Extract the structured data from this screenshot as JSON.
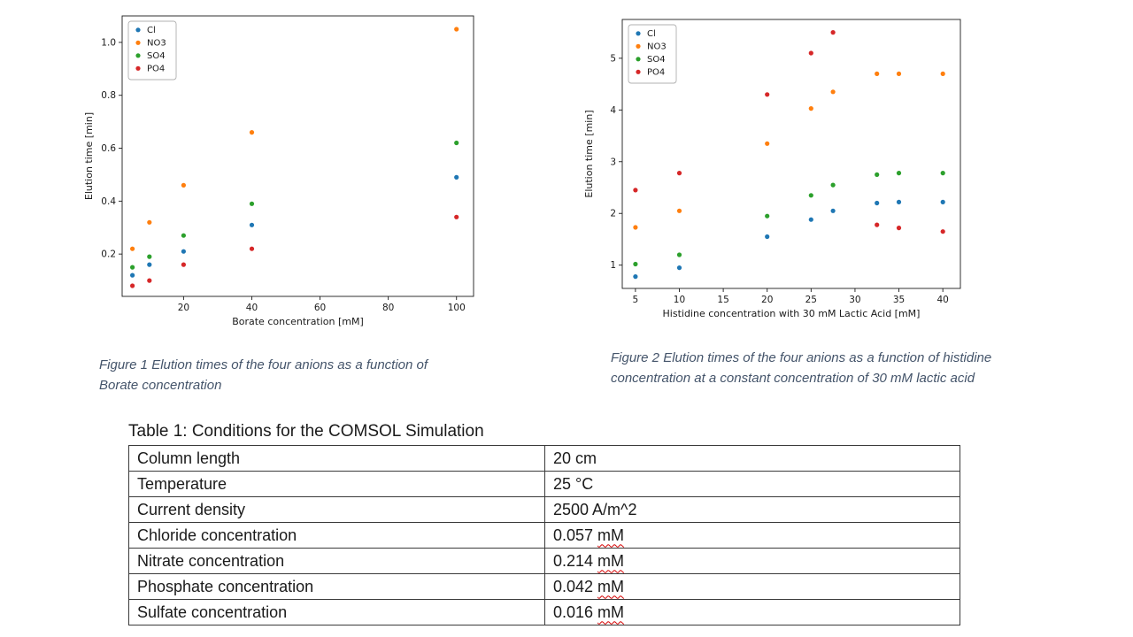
{
  "figures": {
    "fig1_caption": "Figure 1 Elution times of the four anions as a function of Borate concentration",
    "fig2_caption": "Figure 2 Elution times of the four anions as a function of histidine concentration at a constant concentration of 30 mM lactic acid"
  },
  "chart_data": [
    {
      "type": "scatter",
      "title": "",
      "xlabel": "Borate concentration [mM]",
      "ylabel": "Elution time [min]",
      "xlim": [
        2,
        105
      ],
      "ylim": [
        0.04,
        1.1
      ],
      "xticks": [
        20,
        40,
        60,
        80,
        100
      ],
      "xtick_labels": [
        "20",
        "40",
        "60",
        "80",
        "100"
      ],
      "yticks": [
        0.2,
        0.4,
        0.6,
        0.8,
        1.0
      ],
      "ytick_labels": [
        "0.2",
        "0.4",
        "0.6",
        "0.8",
        "1.0"
      ],
      "grid": false,
      "legend_position": "upper left",
      "series": [
        {
          "name": "Cl",
          "color": "#1f77b4",
          "points": [
            [
              5,
              0.12
            ],
            [
              10,
              0.16
            ],
            [
              20,
              0.21
            ],
            [
              40,
              0.31
            ],
            [
              100,
              0.49
            ]
          ]
        },
        {
          "name": "NO3",
          "color": "#ff7f0e",
          "points": [
            [
              5,
              0.22
            ],
            [
              10,
              0.32
            ],
            [
              20,
              0.46
            ],
            [
              40,
              0.66
            ],
            [
              100,
              1.05
            ]
          ]
        },
        {
          "name": "SO4",
          "color": "#2ca02c",
          "points": [
            [
              5,
              0.15
            ],
            [
              10,
              0.19
            ],
            [
              20,
              0.27
            ],
            [
              40,
              0.39
            ],
            [
              100,
              0.62
            ]
          ]
        },
        {
          "name": "PO4",
          "color": "#d62728",
          "points": [
            [
              5,
              0.08
            ],
            [
              10,
              0.1
            ],
            [
              20,
              0.16
            ],
            [
              40,
              0.22
            ],
            [
              100,
              0.34
            ]
          ]
        }
      ]
    },
    {
      "type": "scatter",
      "title": "",
      "xlabel": "Histidine concentration with 30 mM Lactic Acid [mM]",
      "ylabel": "Elution time [min]",
      "xlim": [
        3.5,
        42
      ],
      "ylim": [
        0.55,
        5.75
      ],
      "xticks": [
        5,
        10,
        15,
        20,
        25,
        30,
        35,
        40
      ],
      "xtick_labels": [
        "5",
        "10",
        "15",
        "20",
        "25",
        "30",
        "35",
        "40"
      ],
      "yticks": [
        1,
        2,
        3,
        4,
        5
      ],
      "ytick_labels": [
        "1",
        "2",
        "3",
        "4",
        "5"
      ],
      "grid": false,
      "legend_position": "upper left",
      "series": [
        {
          "name": "Cl",
          "color": "#1f77b4",
          "points": [
            [
              5,
              0.78
            ],
            [
              10,
              0.95
            ],
            [
              20,
              1.55
            ],
            [
              25,
              1.88
            ],
            [
              27.5,
              2.05
            ],
            [
              32.5,
              2.2
            ],
            [
              35,
              2.22
            ],
            [
              40,
              2.22
            ]
          ]
        },
        {
          "name": "NO3",
          "color": "#ff7f0e",
          "points": [
            [
              5,
              1.73
            ],
            [
              10,
              2.05
            ],
            [
              20,
              3.35
            ],
            [
              25,
              4.03
            ],
            [
              27.5,
              4.35
            ],
            [
              32.5,
              4.7
            ],
            [
              35,
              4.7
            ],
            [
              40,
              4.7
            ]
          ]
        },
        {
          "name": "SO4",
          "color": "#2ca02c",
          "points": [
            [
              5,
              1.02
            ],
            [
              10,
              1.2
            ],
            [
              20,
              1.95
            ],
            [
              25,
              2.35
            ],
            [
              27.5,
              2.55
            ],
            [
              32.5,
              2.75
            ],
            [
              35,
              2.78
            ],
            [
              40,
              2.78
            ]
          ]
        },
        {
          "name": "PO4",
          "color": "#d62728",
          "points": [
            [
              5,
              2.45
            ],
            [
              10,
              2.78
            ],
            [
              20,
              4.3
            ],
            [
              25,
              5.1
            ],
            [
              27.5,
              5.5
            ],
            [
              32.5,
              1.78
            ],
            [
              35,
              1.72
            ],
            [
              40,
              1.65
            ]
          ]
        }
      ]
    }
  ],
  "table": {
    "title": "Table 1: Conditions for the COMSOL Simulation",
    "spell_underline_color": "#d40000",
    "rows": [
      {
        "label": "Column length",
        "value": "20 cm",
        "unit": ""
      },
      {
        "label": "Temperature",
        "value": "25 °C",
        "unit": ""
      },
      {
        "label": "Current density",
        "value": "2500 A/m^2",
        "unit": ""
      },
      {
        "label": "Chloride concentration",
        "value": "0.057 ",
        "unit": "mM"
      },
      {
        "label": "Nitrate concentration",
        "value": "0.214 ",
        "unit": "mM"
      },
      {
        "label": "Phosphate concentration",
        "value": "0.042 ",
        "unit": "mM"
      },
      {
        "label": "Sulfate concentration",
        "value": "0.016 ",
        "unit": "mM"
      }
    ]
  }
}
